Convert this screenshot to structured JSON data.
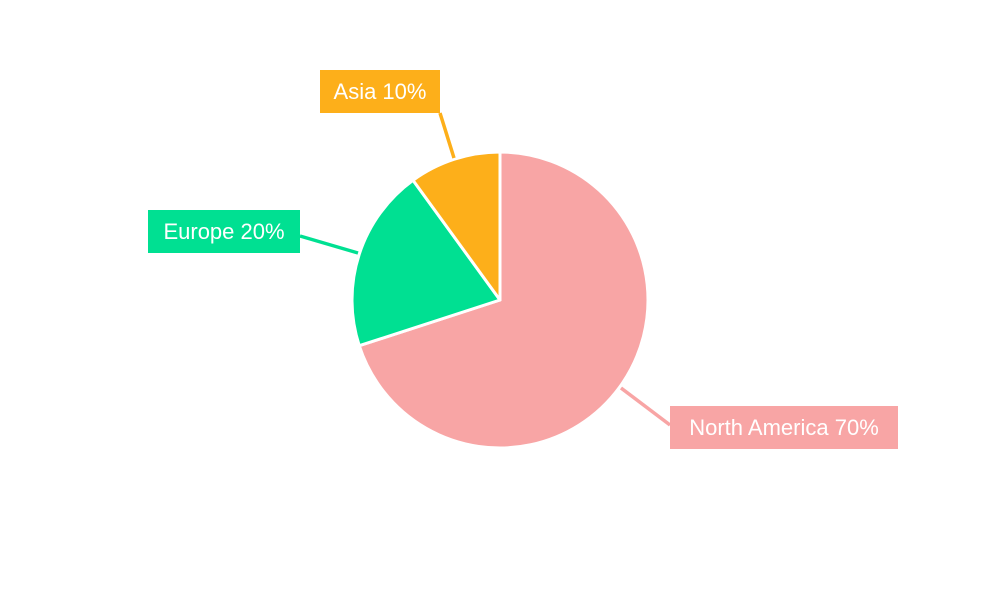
{
  "chart_data": {
    "type": "pie",
    "title": "",
    "categories": [
      "North America",
      "Europe",
      "Asia"
    ],
    "values": [
      70,
      20,
      10
    ],
    "labels": [
      "North America 70%",
      "Europe 20%",
      "Asia 10%"
    ],
    "colors": [
      "#F8A5A5",
      "#00E092",
      "#FDAF1A"
    ],
    "start_angle": "top",
    "direction": "clockwise",
    "legend": "none"
  }
}
